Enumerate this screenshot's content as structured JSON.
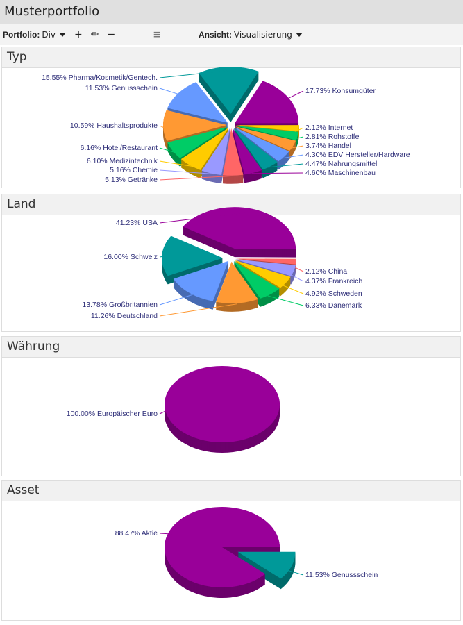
{
  "header": {
    "title": "Musterportfolio"
  },
  "toolbar": {
    "portfolio_label": "Portfolio:",
    "portfolio_value": "Div",
    "view_label": "Ansicht:",
    "view_value": "Visualisierung"
  },
  "chart_data": [
    {
      "type": "pie",
      "title": "Typ",
      "slices": [
        {
          "label": "17.73% Konsumgüter",
          "value": 17.73,
          "color": "#990099"
        },
        {
          "label": "2.12% Internet",
          "value": 2.12,
          "color": "#ffcc00"
        },
        {
          "label": "2.81% Rohstoffe",
          "value": 2.81,
          "color": "#00cc66"
        },
        {
          "label": "3.74% Handel",
          "value": 3.74,
          "color": "#ff9933"
        },
        {
          "label": "4.30% EDV Hersteller/Hardware",
          "value": 4.3,
          "color": "#6699ff"
        },
        {
          "label": "4.47% Nahrungsmittel",
          "value": 4.47,
          "color": "#009999"
        },
        {
          "label": "4.60% Maschinenbau",
          "value": 4.6,
          "color": "#990099"
        },
        {
          "label": "5.13% Getränke",
          "value": 5.13,
          "color": "#ff6666"
        },
        {
          "label": "5.16% Chemie",
          "value": 5.16,
          "color": "#9999ff"
        },
        {
          "label": "6.10% Medizintechnik",
          "value": 6.1,
          "color": "#ffcc00"
        },
        {
          "label": "6.16% Hotel/Restaurant",
          "value": 6.16,
          "color": "#00cc66"
        },
        {
          "label": "10.59% Haushaltsprodukte",
          "value": 10.59,
          "color": "#ff9933"
        },
        {
          "label": "11.53% Genussschein",
          "value": 11.53,
          "color": "#6699ff"
        },
        {
          "label": "15.55% Pharma/Kosmetik/Gentech.",
          "value": 15.55,
          "color": "#009999"
        }
      ]
    },
    {
      "type": "pie",
      "title": "Land",
      "slices": [
        {
          "label": "41.23% USA",
          "value": 41.23,
          "color": "#990099"
        },
        {
          "label": "2.12% China",
          "value": 2.12,
          "color": "#ff6666"
        },
        {
          "label": "4.37% Frankreich",
          "value": 4.37,
          "color": "#9999ff"
        },
        {
          "label": "4.92% Schweden",
          "value": 4.92,
          "color": "#ffcc00"
        },
        {
          "label": "6.33% Dänemark",
          "value": 6.33,
          "color": "#00cc66"
        },
        {
          "label": "11.26% Deutschland",
          "value": 11.26,
          "color": "#ff9933"
        },
        {
          "label": "13.78% Großbritannien",
          "value": 13.78,
          "color": "#6699ff"
        },
        {
          "label": "16.00% Schweiz",
          "value": 16.0,
          "color": "#009999"
        }
      ]
    },
    {
      "type": "pie",
      "title": "Währung",
      "slices": [
        {
          "label": "100.00% Europäischer Euro",
          "value": 100.0,
          "color": "#990099"
        }
      ]
    },
    {
      "type": "pie",
      "title": "Asset",
      "slices": [
        {
          "label": "88.47% Aktie",
          "value": 88.47,
          "color": "#990099"
        },
        {
          "label": "11.53% Genussschein",
          "value": 11.53,
          "color": "#009999"
        }
      ]
    }
  ]
}
